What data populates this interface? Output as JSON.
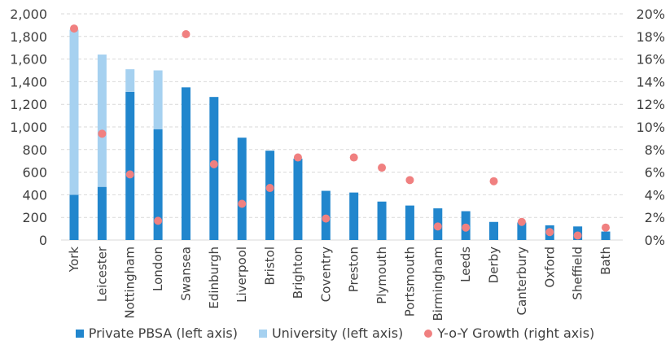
{
  "chart_data": {
    "type": "bar",
    "stacked": true,
    "categories": [
      "York",
      "Leicester",
      "Nottingham",
      "London",
      "Swansea",
      "Edinburgh",
      "Liverpool",
      "Bristol",
      "Brighton",
      "Coventry",
      "Preston",
      "Plymouth",
      "Portsmouth",
      "Birmingham",
      "Leeds",
      "Derby",
      "Canterbury",
      "Oxford",
      "Sheffield",
      "Bath"
    ],
    "series": [
      {
        "name": "Private PBSA (left axis)",
        "type": "bar",
        "axis": "left",
        "color": "#2186CD",
        "values": [
          400,
          470,
          1310,
          980,
          1350,
          1265,
          905,
          790,
          720,
          435,
          420,
          340,
          305,
          280,
          255,
          160,
          155,
          130,
          120,
          75
        ]
      },
      {
        "name": "University (left axis)",
        "type": "bar",
        "axis": "left",
        "color": "#A6D1F0",
        "values": [
          1460,
          1170,
          200,
          520,
          0,
          0,
          0,
          0,
          0,
          0,
          0,
          0,
          0,
          0,
          0,
          0,
          0,
          0,
          0,
          0
        ]
      },
      {
        "name": "Y-o-Y Growth (right axis)",
        "type": "scatter",
        "axis": "right",
        "color": "#F08080",
        "values": [
          18.7,
          9.4,
          5.8,
          1.7,
          18.2,
          6.7,
          3.2,
          4.6,
          7.3,
          1.9,
          7.3,
          6.4,
          5.3,
          1.2,
          1.1,
          5.2,
          1.6,
          0.7,
          0.4,
          1.1
        ]
      }
    ],
    "yleft": {
      "range": [
        0,
        2000
      ],
      "ticks": [
        "0",
        "200",
        "400",
        "600",
        "800",
        "1,000",
        "1,200",
        "1,400",
        "1,600",
        "1,800",
        "2,000"
      ]
    },
    "yright": {
      "range": [
        0,
        20
      ],
      "ticks": [
        "0%",
        "2%",
        "4%",
        "6%",
        "8%",
        "10%",
        "12%",
        "14%",
        "16%",
        "18%",
        "20%"
      ]
    },
    "grid": true,
    "legend": "bottom"
  }
}
